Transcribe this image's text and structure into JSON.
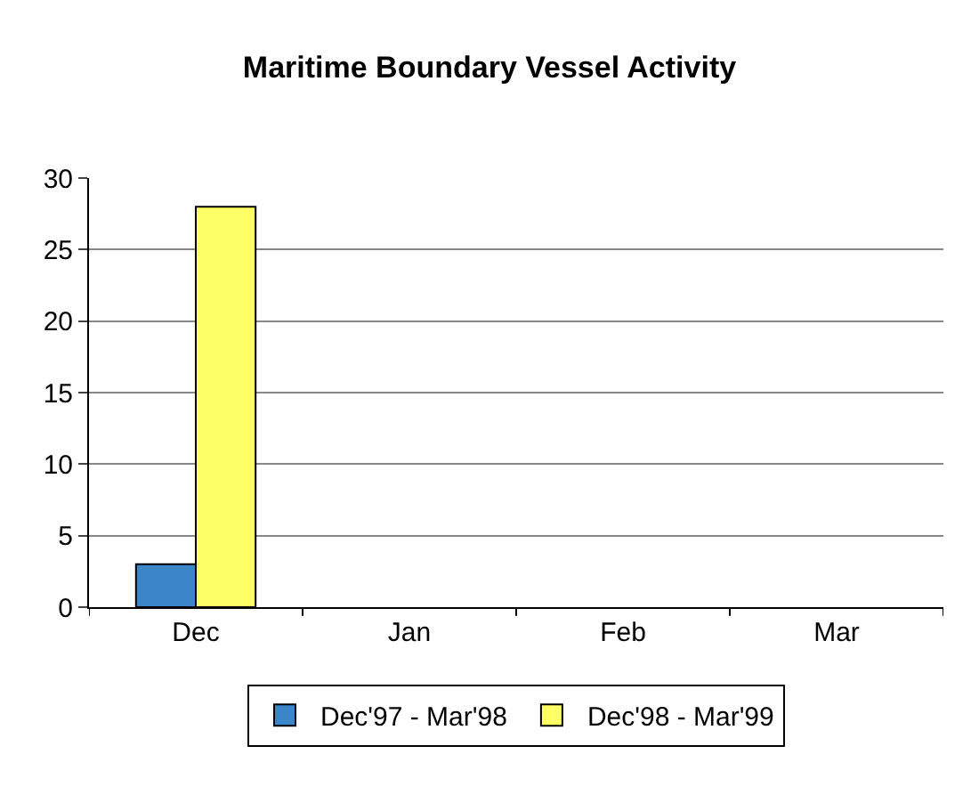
{
  "chart_data": {
    "type": "bar",
    "title": "Maritime Boundary Vessel Activity",
    "categories": [
      "Dec",
      "Jan",
      "Feb",
      "Mar"
    ],
    "series": [
      {
        "name": "Dec'97 - Mar'98",
        "color": "#3a86c8",
        "values": [
          3,
          null,
          null,
          null
        ]
      },
      {
        "name": "Dec'98 - Mar'99",
        "color": "#ffff66",
        "values": [
          28,
          null,
          null,
          null
        ]
      }
    ],
    "ylim": [
      0,
      30
    ],
    "yticks": [
      0,
      5,
      10,
      15,
      20,
      25,
      30
    ],
    "grid": "y",
    "legend": "bottom"
  }
}
